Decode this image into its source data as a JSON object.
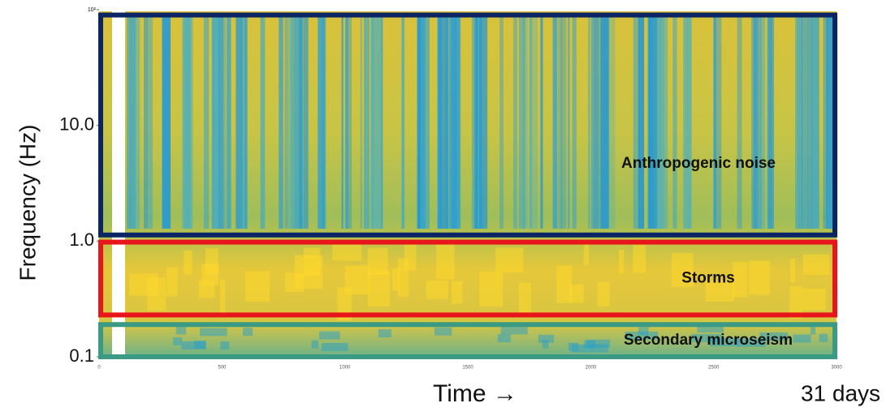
{
  "chart_data": {
    "type": "spectrogram",
    "y_label": "Frequency (Hz)",
    "x_label": "Time →",
    "x_end_label": "31 days",
    "xlim": [
      0,
      3000
    ],
    "xticks": [
      0,
      500,
      1000,
      1500,
      2000,
      2500,
      3000
    ],
    "ylim": [
      0.1,
      100
    ],
    "log_y": true,
    "yticks": [
      0.1,
      {
        "value": 1,
        "label": "1.0"
      },
      {
        "value": 10,
        "label": "10.0"
      },
      {
        "value": 100,
        "label": "10²"
      }
    ],
    "annotations": [
      {
        "label": "Anthropogenic noise",
        "y_range": [
          1.13,
          90
        ],
        "color": "#0b2463"
      },
      {
        "label": "Storms",
        "y_range": [
          0.23,
          0.98
        ],
        "color": "#e8161b"
      },
      {
        "label": "Secondary microseism",
        "y_range": [
          0.1,
          0.19
        ],
        "color": "#3a9a84"
      }
    ]
  }
}
